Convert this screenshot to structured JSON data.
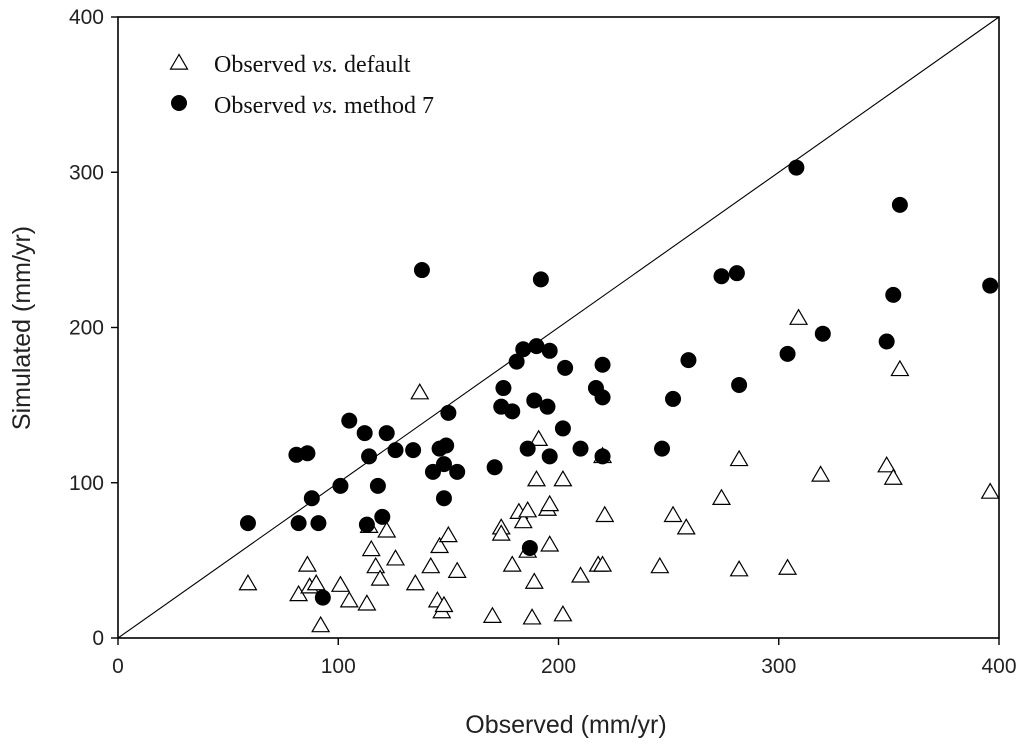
{
  "chart_data": {
    "type": "scatter",
    "title": "",
    "xlabel": "Observed (mm/yr)",
    "ylabel": "Simulated (mm/yr)",
    "xlim": [
      0,
      400
    ],
    "ylim": [
      0,
      400
    ],
    "xticks": [
      0,
      100,
      200,
      300,
      400
    ],
    "yticks": [
      0,
      100,
      200,
      300,
      400
    ],
    "grid": false,
    "legend_position": "top-left",
    "reference_line": {
      "name": "1:1 line",
      "from": [
        0,
        0
      ],
      "to": [
        400,
        400
      ]
    },
    "series": [
      {
        "name": "default",
        "legend_label": {
          "pre": "Observed ",
          "italic": "vs.",
          "post": " default"
        },
        "marker": "open-triangle",
        "points": [
          [
            59,
            35
          ],
          [
            82,
            28
          ],
          [
            86,
            47
          ],
          [
            87,
            33
          ],
          [
            90,
            35
          ],
          [
            92,
            8
          ],
          [
            101,
            34
          ],
          [
            105,
            24
          ],
          [
            113,
            22
          ],
          [
            114,
            72
          ],
          [
            115,
            57
          ],
          [
            117,
            46
          ],
          [
            119,
            38
          ],
          [
            122,
            69
          ],
          [
            126,
            51
          ],
          [
            135,
            35
          ],
          [
            142,
            46
          ],
          [
            145,
            24
          ],
          [
            146,
            59
          ],
          [
            147,
            17
          ],
          [
            148,
            21
          ],
          [
            150,
            66
          ],
          [
            154,
            43
          ],
          [
            137,
            158
          ],
          [
            170,
            14
          ],
          [
            174,
            71
          ],
          [
            174,
            67
          ],
          [
            179,
            47
          ],
          [
            182,
            81
          ],
          [
            184,
            75
          ],
          [
            186,
            82
          ],
          [
            186,
            56
          ],
          [
            188,
            13
          ],
          [
            189,
            36
          ],
          [
            190,
            102
          ],
          [
            191,
            128
          ],
          [
            195,
            83
          ],
          [
            196,
            86
          ],
          [
            196,
            60
          ],
          [
            202,
            102
          ],
          [
            202,
            15
          ],
          [
            210,
            40
          ],
          [
            218,
            47
          ],
          [
            220,
            47
          ],
          [
            220,
            117
          ],
          [
            221,
            79
          ],
          [
            246,
            46
          ],
          [
            252,
            79
          ],
          [
            258,
            71
          ],
          [
            274,
            90
          ],
          [
            282,
            115
          ],
          [
            282,
            44
          ],
          [
            304,
            45
          ],
          [
            309,
            206
          ],
          [
            319,
            105
          ],
          [
            349,
            111
          ],
          [
            352,
            103
          ],
          [
            355,
            173
          ],
          [
            396,
            94
          ]
        ]
      },
      {
        "name": "method 7",
        "legend_label": {
          "pre": "Observed ",
          "italic": "vs.",
          "post": " method 7"
        },
        "marker": "filled-circle",
        "points": [
          [
            59,
            74
          ],
          [
            81,
            118
          ],
          [
            82,
            74
          ],
          [
            86,
            119
          ],
          [
            88,
            90
          ],
          [
            91,
            74
          ],
          [
            93,
            26
          ],
          [
            101,
            98
          ],
          [
            105,
            140
          ],
          [
            112,
            132
          ],
          [
            113,
            73
          ],
          [
            114,
            117
          ],
          [
            118,
            98
          ],
          [
            120,
            78
          ],
          [
            122,
            132
          ],
          [
            126,
            121
          ],
          [
            134,
            121
          ],
          [
            138,
            237
          ],
          [
            143,
            107
          ],
          [
            146,
            122
          ],
          [
            148,
            112
          ],
          [
            148,
            90
          ],
          [
            149,
            124
          ],
          [
            150,
            145
          ],
          [
            154,
            107
          ],
          [
            171,
            110
          ],
          [
            174,
            149
          ],
          [
            175,
            161
          ],
          [
            179,
            146
          ],
          [
            181,
            178
          ],
          [
            184,
            186
          ],
          [
            186,
            122
          ],
          [
            187,
            58
          ],
          [
            189,
            153
          ],
          [
            190,
            188
          ],
          [
            192,
            231
          ],
          [
            195,
            149
          ],
          [
            196,
            117
          ],
          [
            196,
            185
          ],
          [
            202,
            135
          ],
          [
            203,
            174
          ],
          [
            210,
            122
          ],
          [
            217,
            161
          ],
          [
            220,
            155
          ],
          [
            220,
            176
          ],
          [
            220,
            117
          ],
          [
            247,
            122
          ],
          [
            252,
            154
          ],
          [
            259,
            179
          ],
          [
            274,
            233
          ],
          [
            281,
            235
          ],
          [
            282,
            163
          ],
          [
            304,
            183
          ],
          [
            308,
            303
          ],
          [
            320,
            196
          ],
          [
            349,
            191
          ],
          [
            352,
            221
          ],
          [
            355,
            279
          ],
          [
            396,
            227
          ]
        ]
      }
    ]
  }
}
